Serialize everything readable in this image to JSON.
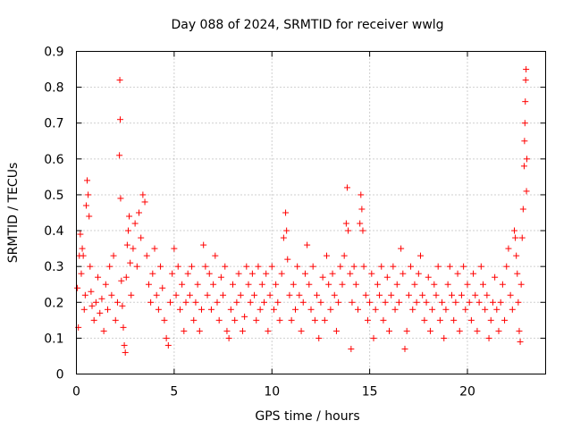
{
  "chart_data": {
    "type": "scatter",
    "title": "Day 088 of 2024, SRMTID for receiver wwlg",
    "xlabel": "GPS time / hours",
    "ylabel": "SRMTID / TECUs",
    "xlim": [
      0,
      24
    ],
    "ylim": [
      0,
      0.9
    ],
    "xticks": [
      0,
      5,
      10,
      15,
      20
    ],
    "yticks": [
      0,
      0.1,
      0.2,
      0.3,
      0.4,
      0.5,
      0.6,
      0.7,
      0.8,
      0.9
    ],
    "grid": true,
    "marker": "+",
    "color": "#ff0000",
    "series": [
      {
        "name": "SRMTID",
        "points": [
          [
            0.05,
            0.24
          ],
          [
            0.1,
            0.13
          ],
          [
            0.15,
            0.33
          ],
          [
            0.2,
            0.39
          ],
          [
            0.25,
            0.28
          ],
          [
            0.3,
            0.35
          ],
          [
            0.35,
            0.33
          ],
          [
            0.4,
            0.18
          ],
          [
            0.45,
            0.22
          ],
          [
            0.5,
            0.47
          ],
          [
            0.55,
            0.54
          ],
          [
            0.6,
            0.5
          ],
          [
            0.65,
            0.44
          ],
          [
            0.7,
            0.3
          ],
          [
            0.75,
            0.23
          ],
          [
            0.8,
            0.19
          ],
          [
            0.9,
            0.15
          ],
          [
            1.0,
            0.2
          ],
          [
            1.1,
            0.27
          ],
          [
            1.2,
            0.17
          ],
          [
            1.3,
            0.21
          ],
          [
            1.4,
            0.12
          ],
          [
            1.5,
            0.25
          ],
          [
            1.6,
            0.18
          ],
          [
            1.7,
            0.3
          ],
          [
            1.8,
            0.22
          ],
          [
            1.9,
            0.33
          ],
          [
            2.0,
            0.15
          ],
          [
            2.1,
            0.2
          ],
          [
            2.2,
            0.61
          ],
          [
            2.22,
            0.82
          ],
          [
            2.24,
            0.71
          ],
          [
            2.26,
            0.49
          ],
          [
            2.3,
            0.26
          ],
          [
            2.35,
            0.19
          ],
          [
            2.4,
            0.13
          ],
          [
            2.45,
            0.08
          ],
          [
            2.5,
            0.06
          ],
          [
            2.55,
            0.27
          ],
          [
            2.6,
            0.36
          ],
          [
            2.65,
            0.4
          ],
          [
            2.7,
            0.44
          ],
          [
            2.75,
            0.31
          ],
          [
            2.8,
            0.22
          ],
          [
            2.9,
            0.35
          ],
          [
            3.0,
            0.42
          ],
          [
            3.1,
            0.3
          ],
          [
            3.2,
            0.45
          ],
          [
            3.3,
            0.38
          ],
          [
            3.4,
            0.5
          ],
          [
            3.5,
            0.48
          ],
          [
            3.6,
            0.33
          ],
          [
            3.7,
            0.25
          ],
          [
            3.8,
            0.2
          ],
          [
            3.9,
            0.28
          ],
          [
            4.0,
            0.35
          ],
          [
            4.1,
            0.22
          ],
          [
            4.2,
            0.18
          ],
          [
            4.3,
            0.3
          ],
          [
            4.4,
            0.24
          ],
          [
            4.5,
            0.15
          ],
          [
            4.6,
            0.1
          ],
          [
            4.7,
            0.08
          ],
          [
            4.8,
            0.2
          ],
          [
            4.9,
            0.28
          ],
          [
            5.0,
            0.35
          ],
          [
            5.1,
            0.22
          ],
          [
            5.2,
            0.3
          ],
          [
            5.3,
            0.18
          ],
          [
            5.4,
            0.25
          ],
          [
            5.5,
            0.12
          ],
          [
            5.6,
            0.2
          ],
          [
            5.7,
            0.28
          ],
          [
            5.8,
            0.22
          ],
          [
            5.9,
            0.3
          ],
          [
            6.0,
            0.15
          ],
          [
            6.1,
            0.2
          ],
          [
            6.2,
            0.25
          ],
          [
            6.3,
            0.12
          ],
          [
            6.4,
            0.18
          ],
          [
            6.5,
            0.36
          ],
          [
            6.6,
            0.3
          ],
          [
            6.7,
            0.22
          ],
          [
            6.8,
            0.28
          ],
          [
            6.9,
            0.18
          ],
          [
            7.0,
            0.25
          ],
          [
            7.1,
            0.33
          ],
          [
            7.2,
            0.2
          ],
          [
            7.3,
            0.15
          ],
          [
            7.4,
            0.27
          ],
          [
            7.5,
            0.22
          ],
          [
            7.6,
            0.3
          ],
          [
            7.7,
            0.12
          ],
          [
            7.8,
            0.1
          ],
          [
            7.9,
            0.18
          ],
          [
            8.0,
            0.25
          ],
          [
            8.1,
            0.15
          ],
          [
            8.2,
            0.2
          ],
          [
            8.3,
            0.28
          ],
          [
            8.4,
            0.22
          ],
          [
            8.5,
            0.12
          ],
          [
            8.6,
            0.16
          ],
          [
            8.7,
            0.3
          ],
          [
            8.8,
            0.25
          ],
          [
            8.9,
            0.2
          ],
          [
            9.0,
            0.28
          ],
          [
            9.1,
            0.22
          ],
          [
            9.2,
            0.15
          ],
          [
            9.3,
            0.3
          ],
          [
            9.4,
            0.18
          ],
          [
            9.5,
            0.25
          ],
          [
            9.6,
            0.2
          ],
          [
            9.7,
            0.28
          ],
          [
            9.8,
            0.12
          ],
          [
            9.9,
            0.22
          ],
          [
            10.0,
            0.3
          ],
          [
            10.1,
            0.18
          ],
          [
            10.2,
            0.25
          ],
          [
            10.3,
            0.2
          ],
          [
            10.4,
            0.15
          ],
          [
            10.5,
            0.28
          ],
          [
            10.6,
            0.38
          ],
          [
            10.7,
            0.45
          ],
          [
            10.75,
            0.4
          ],
          [
            10.8,
            0.32
          ],
          [
            10.9,
            0.22
          ],
          [
            11.0,
            0.15
          ],
          [
            11.1,
            0.25
          ],
          [
            11.2,
            0.18
          ],
          [
            11.3,
            0.3
          ],
          [
            11.4,
            0.22
          ],
          [
            11.5,
            0.12
          ],
          [
            11.6,
            0.2
          ],
          [
            11.7,
            0.28
          ],
          [
            11.8,
            0.36
          ],
          [
            11.9,
            0.25
          ],
          [
            12.0,
            0.18
          ],
          [
            12.1,
            0.3
          ],
          [
            12.2,
            0.15
          ],
          [
            12.3,
            0.22
          ],
          [
            12.4,
            0.1
          ],
          [
            12.5,
            0.2
          ],
          [
            12.6,
            0.27
          ],
          [
            12.7,
            0.15
          ],
          [
            12.8,
            0.33
          ],
          [
            12.9,
            0.25
          ],
          [
            13.0,
            0.18
          ],
          [
            13.1,
            0.28
          ],
          [
            13.2,
            0.22
          ],
          [
            13.3,
            0.12
          ],
          [
            13.4,
            0.2
          ],
          [
            13.5,
            0.3
          ],
          [
            13.6,
            0.25
          ],
          [
            13.7,
            0.33
          ],
          [
            13.8,
            0.42
          ],
          [
            13.85,
            0.52
          ],
          [
            13.9,
            0.4
          ],
          [
            14.0,
            0.28
          ],
          [
            14.05,
            0.07
          ],
          [
            14.1,
            0.2
          ],
          [
            14.2,
            0.3
          ],
          [
            14.3,
            0.25
          ],
          [
            14.4,
            0.18
          ],
          [
            14.5,
            0.42
          ],
          [
            14.55,
            0.5
          ],
          [
            14.6,
            0.46
          ],
          [
            14.65,
            0.4
          ],
          [
            14.7,
            0.3
          ],
          [
            14.8,
            0.22
          ],
          [
            14.9,
            0.15
          ],
          [
            15.0,
            0.2
          ],
          [
            15.1,
            0.28
          ],
          [
            15.2,
            0.1
          ],
          [
            15.3,
            0.18
          ],
          [
            15.4,
            0.25
          ],
          [
            15.5,
            0.22
          ],
          [
            15.6,
            0.3
          ],
          [
            15.7,
            0.15
          ],
          [
            15.8,
            0.2
          ],
          [
            15.9,
            0.27
          ],
          [
            16.0,
            0.12
          ],
          [
            16.1,
            0.22
          ],
          [
            16.2,
            0.3
          ],
          [
            16.3,
            0.18
          ],
          [
            16.4,
            0.25
          ],
          [
            16.5,
            0.2
          ],
          [
            16.6,
            0.35
          ],
          [
            16.7,
            0.28
          ],
          [
            16.8,
            0.07
          ],
          [
            16.9,
            0.12
          ],
          [
            17.0,
            0.22
          ],
          [
            17.1,
            0.3
          ],
          [
            17.2,
            0.18
          ],
          [
            17.3,
            0.25
          ],
          [
            17.4,
            0.2
          ],
          [
            17.5,
            0.28
          ],
          [
            17.6,
            0.33
          ],
          [
            17.7,
            0.22
          ],
          [
            17.8,
            0.15
          ],
          [
            17.9,
            0.2
          ],
          [
            18.0,
            0.27
          ],
          [
            18.1,
            0.12
          ],
          [
            18.2,
            0.18
          ],
          [
            18.3,
            0.25
          ],
          [
            18.4,
            0.22
          ],
          [
            18.5,
            0.3
          ],
          [
            18.6,
            0.15
          ],
          [
            18.7,
            0.2
          ],
          [
            18.8,
            0.1
          ],
          [
            18.9,
            0.18
          ],
          [
            19.0,
            0.25
          ],
          [
            19.1,
            0.3
          ],
          [
            19.2,
            0.22
          ],
          [
            19.3,
            0.15
          ],
          [
            19.4,
            0.2
          ],
          [
            19.5,
            0.28
          ],
          [
            19.6,
            0.12
          ],
          [
            19.7,
            0.22
          ],
          [
            19.8,
            0.3
          ],
          [
            19.9,
            0.18
          ],
          [
            20.0,
            0.25
          ],
          [
            20.1,
            0.2
          ],
          [
            20.2,
            0.15
          ],
          [
            20.3,
            0.28
          ],
          [
            20.4,
            0.22
          ],
          [
            20.5,
            0.12
          ],
          [
            20.6,
            0.2
          ],
          [
            20.7,
            0.3
          ],
          [
            20.8,
            0.25
          ],
          [
            20.9,
            0.18
          ],
          [
            21.0,
            0.22
          ],
          [
            21.1,
            0.1
          ],
          [
            21.2,
            0.15
          ],
          [
            21.3,
            0.2
          ],
          [
            21.4,
            0.27
          ],
          [
            21.5,
            0.18
          ],
          [
            21.6,
            0.12
          ],
          [
            21.7,
            0.2
          ],
          [
            21.8,
            0.25
          ],
          [
            21.9,
            0.15
          ],
          [
            22.0,
            0.3
          ],
          [
            22.1,
            0.35
          ],
          [
            22.2,
            0.22
          ],
          [
            22.3,
            0.18
          ],
          [
            22.4,
            0.4
          ],
          [
            22.45,
            0.38
          ],
          [
            22.5,
            0.33
          ],
          [
            22.55,
            0.28
          ],
          [
            22.6,
            0.2
          ],
          [
            22.65,
            0.12
          ],
          [
            22.7,
            0.09
          ],
          [
            22.75,
            0.25
          ],
          [
            22.8,
            0.38
          ],
          [
            22.85,
            0.46
          ],
          [
            22.9,
            0.58
          ],
          [
            22.92,
            0.65
          ],
          [
            22.94,
            0.7
          ],
          [
            22.96,
            0.76
          ],
          [
            22.98,
            0.82
          ],
          [
            23.0,
            0.85
          ],
          [
            23.02,
            0.51
          ],
          [
            23.04,
            0.6
          ]
        ]
      }
    ]
  }
}
